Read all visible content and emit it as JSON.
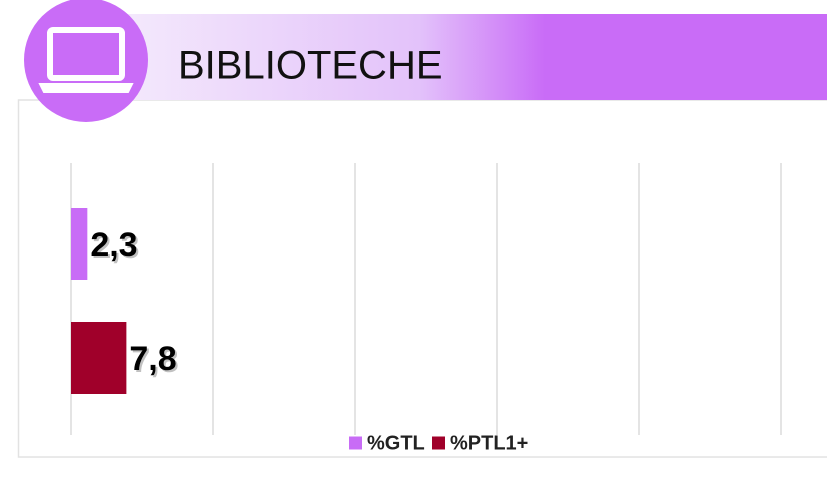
{
  "chart_data": {
    "type": "bar",
    "orientation": "horizontal",
    "title": "BIBLIOTECHE",
    "categories": [
      null
    ],
    "series": [
      {
        "name": "%GTL",
        "color": "#c86cf6",
        "values": [
          2.3
        ],
        "value_labels": [
          "2,3"
        ]
      },
      {
        "name": "%PTL1+",
        "color": "#a0002a",
        "values": [
          7.8
        ],
        "value_labels": [
          "7,8"
        ]
      }
    ],
    "xlim": [
      0,
      100
    ],
    "xticks": [
      0,
      20,
      40,
      60,
      80,
      100
    ],
    "grid": true,
    "legend": "bottom"
  }
}
